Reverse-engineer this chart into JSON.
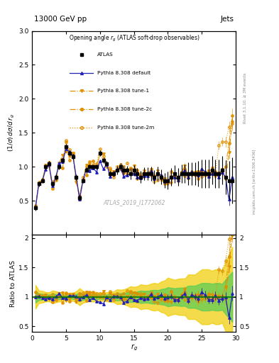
{
  "title_top": "13000 GeV pp",
  "title_right": "Jets",
  "plot_title": "Opening angle $r_g$ (ATLAS soft-drop observables)",
  "xlabel": "$r_g$",
  "ylabel_main": "$(1/\\sigma)\\,d\\sigma/d\\,r_g$",
  "ylabel_ratio": "Ratio to ATLAS",
  "watermark": "ATLAS_2019_I1772062",
  "rivet_label": "Rivet 3.1.10, ≥ 3M events",
  "arxiv_label": "mcplots.cern.ch [arXiv:1306.3436]",
  "ylim_main": [
    0.0,
    3.0
  ],
  "ylim_ratio": [
    0.4,
    2.05
  ],
  "xlim": [
    0,
    30
  ],
  "x": [
    0.5,
    1.0,
    1.5,
    2.0,
    2.5,
    3.0,
    3.5,
    4.0,
    4.5,
    5.0,
    5.5,
    6.0,
    6.5,
    7.0,
    7.5,
    8.0,
    8.5,
    9.0,
    9.5,
    10.0,
    10.5,
    11.0,
    11.5,
    12.0,
    12.5,
    13.0,
    13.5,
    14.0,
    14.5,
    15.0,
    15.5,
    16.0,
    16.5,
    17.0,
    17.5,
    18.0,
    18.5,
    19.0,
    19.5,
    20.0,
    20.5,
    21.0,
    21.5,
    22.0,
    22.5,
    23.0,
    23.5,
    24.0,
    24.5,
    25.0,
    25.5,
    26.0,
    26.5,
    27.0,
    27.5,
    28.0,
    28.5,
    29.0,
    29.5
  ],
  "atlas_y": [
    0.4,
    0.75,
    0.8,
    1.0,
    1.05,
    0.75,
    0.85,
    1.0,
    1.1,
    1.3,
    1.2,
    1.15,
    0.85,
    0.55,
    0.8,
    0.95,
    1.0,
    1.0,
    1.0,
    1.2,
    1.1,
    1.05,
    0.9,
    0.9,
    0.95,
    1.0,
    0.95,
    0.95,
    0.9,
    0.95,
    0.9,
    0.85,
    0.9,
    0.9,
    0.9,
    0.85,
    0.9,
    0.85,
    0.8,
    0.8,
    0.85,
    0.9,
    0.85,
    0.9,
    0.9,
    0.9,
    0.9,
    0.9,
    0.9,
    0.9,
    0.9,
    0.9,
    0.95,
    0.9,
    0.9,
    0.95,
    0.85,
    0.8,
    0.8
  ],
  "atlas_yerr": [
    0.04,
    0.04,
    0.04,
    0.04,
    0.04,
    0.04,
    0.04,
    0.04,
    0.04,
    0.04,
    0.04,
    0.04,
    0.04,
    0.04,
    0.04,
    0.04,
    0.04,
    0.04,
    0.04,
    0.04,
    0.04,
    0.04,
    0.04,
    0.04,
    0.06,
    0.06,
    0.06,
    0.07,
    0.08,
    0.08,
    0.08,
    0.09,
    0.09,
    0.09,
    0.1,
    0.1,
    0.1,
    0.11,
    0.11,
    0.13,
    0.13,
    0.13,
    0.13,
    0.14,
    0.14,
    0.17,
    0.17,
    0.17,
    0.19,
    0.21,
    0.21,
    0.21,
    0.21,
    0.21,
    0.21,
    0.21,
    0.25,
    0.29,
    0.34
  ],
  "default_y": [
    0.4,
    0.75,
    0.8,
    1.0,
    1.05,
    0.75,
    0.85,
    1.0,
    1.1,
    1.3,
    1.2,
    1.15,
    0.85,
    0.55,
    0.8,
    0.95,
    1.0,
    1.0,
    1.0,
    1.15,
    1.05,
    1.05,
    0.9,
    0.9,
    0.95,
    1.0,
    0.95,
    0.9,
    0.9,
    0.9,
    0.9,
    0.85,
    0.9,
    0.9,
    0.9,
    0.85,
    0.9,
    0.85,
    0.8,
    0.8,
    0.85,
    0.85,
    0.85,
    0.9,
    0.9,
    0.9,
    0.9,
    0.9,
    0.9,
    0.9,
    0.9,
    0.9,
    0.9,
    0.9,
    0.85,
    0.9,
    0.85,
    0.5,
    0.8
  ],
  "tune1_y": [
    0.41,
    0.76,
    0.81,
    1.02,
    1.07,
    0.76,
    0.86,
    1.01,
    1.11,
    1.31,
    1.21,
    1.16,
    0.86,
    0.56,
    0.81,
    0.96,
    1.01,
    1.01,
    1.01,
    1.21,
    1.11,
    1.06,
    0.91,
    0.91,
    0.96,
    1.01,
    0.96,
    0.96,
    0.91,
    0.96,
    0.91,
    0.86,
    0.91,
    0.91,
    0.91,
    0.86,
    0.91,
    0.86,
    0.81,
    0.81,
    0.86,
    0.91,
    0.86,
    0.91,
    0.91,
    0.91,
    0.91,
    0.91,
    0.91,
    0.91,
    0.91,
    0.91,
    0.96,
    0.91,
    0.91,
    0.96,
    0.86,
    1.2,
    1.7
  ],
  "tune2c_y": [
    0.41,
    0.76,
    0.81,
    1.02,
    1.07,
    0.76,
    0.86,
    1.01,
    1.11,
    1.31,
    1.21,
    1.16,
    0.86,
    0.56,
    0.81,
    0.96,
    1.01,
    1.01,
    1.01,
    1.21,
    1.11,
    1.06,
    0.91,
    0.91,
    0.96,
    1.01,
    0.96,
    0.96,
    0.91,
    0.96,
    0.91,
    0.86,
    0.91,
    0.91,
    0.91,
    0.86,
    0.91,
    0.86,
    0.81,
    0.81,
    0.86,
    0.91,
    0.86,
    0.91,
    0.91,
    0.91,
    0.91,
    0.91,
    0.91,
    0.91,
    0.91,
    0.91,
    0.96,
    0.91,
    0.91,
    0.96,
    1.05,
    1.4,
    1.7
  ],
  "tune2m_y": [
    0.41,
    0.76,
    0.81,
    1.02,
    1.07,
    0.76,
    0.86,
    1.01,
    1.11,
    1.31,
    1.21,
    1.16,
    0.86,
    0.56,
    0.81,
    0.96,
    1.01,
    1.01,
    1.01,
    1.21,
    1.11,
    1.06,
    0.91,
    0.91,
    0.96,
    1.01,
    0.96,
    0.96,
    0.91,
    0.96,
    0.91,
    0.86,
    0.91,
    0.91,
    0.91,
    0.86,
    0.91,
    0.86,
    0.81,
    0.81,
    0.86,
    0.91,
    0.86,
    0.91,
    0.91,
    0.91,
    0.91,
    0.91,
    0.91,
    0.91,
    0.91,
    0.91,
    0.96,
    0.91,
    1.35,
    1.35,
    1.35,
    1.5,
    1.7
  ],
  "color_atlas": "#222222",
  "color_default": "#2222bb",
  "color_orange": "#e09000",
  "bg_color": "#ffffff",
  "ratio_band_green": "#55cc55",
  "ratio_band_yellow": "#eecc00"
}
